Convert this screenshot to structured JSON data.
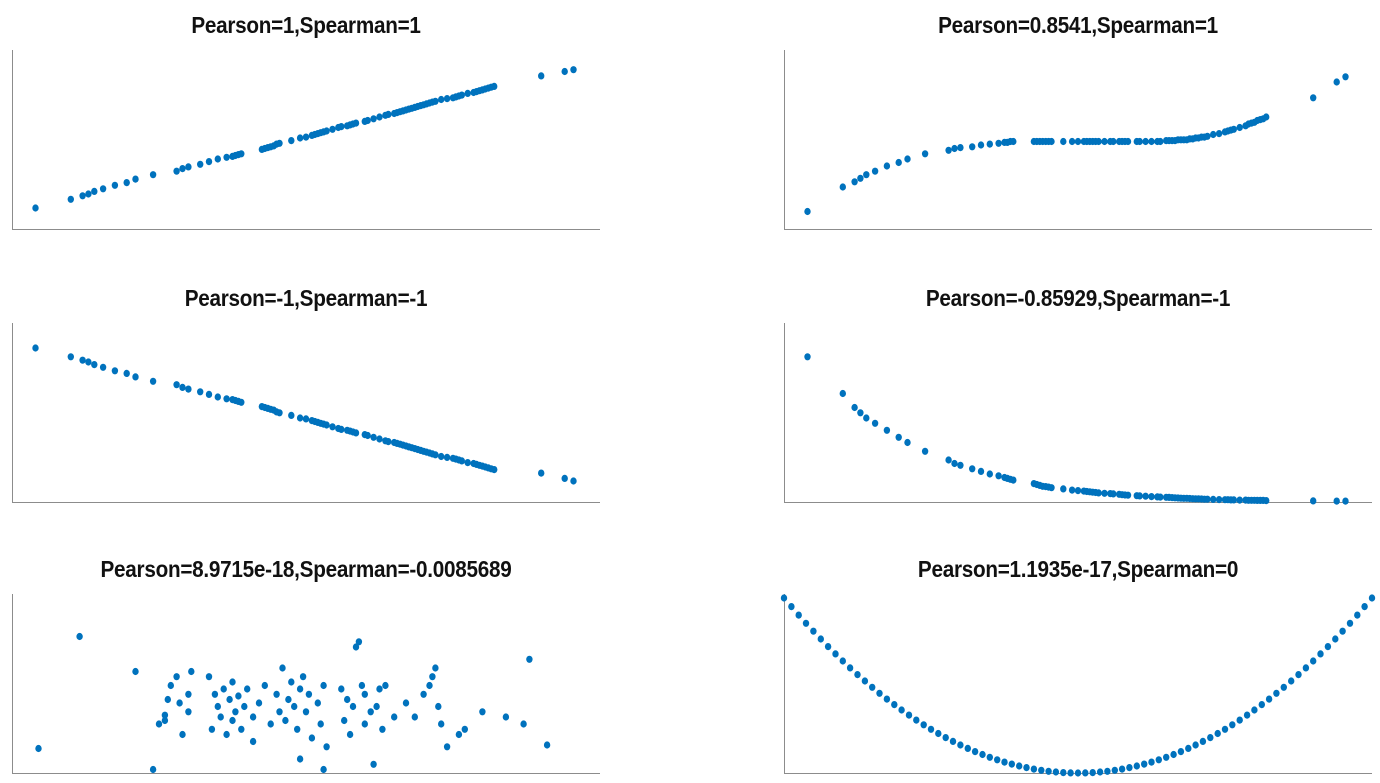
{
  "colors": {
    "marker": "#0072BD",
    "axis": "#8c8c8c"
  },
  "chart_data": [
    {
      "type": "scatter",
      "title": "Pearson=1,Spearman=1",
      "xlim": [
        0,
        1
      ],
      "ylim": [
        0,
        1
      ],
      "grid": false,
      "legend": "none",
      "x": [
        0.04,
        0.1,
        0.12,
        0.13,
        0.14,
        0.155,
        0.175,
        0.195,
        0.21,
        0.24,
        0.28,
        0.29,
        0.3,
        0.32,
        0.335,
        0.35,
        0.365,
        0.375,
        0.38,
        0.385,
        0.39,
        0.425,
        0.43,
        0.435,
        0.44,
        0.445,
        0.45,
        0.455,
        0.475,
        0.49,
        0.5,
        0.51,
        0.515,
        0.52,
        0.525,
        0.53,
        0.535,
        0.545,
        0.555,
        0.56,
        0.57,
        0.575,
        0.58,
        0.585,
        0.6,
        0.605,
        0.615,
        0.625,
        0.635,
        0.64,
        0.65,
        0.655,
        0.66,
        0.665,
        0.67,
        0.675,
        0.68,
        0.685,
        0.69,
        0.695,
        0.7,
        0.705,
        0.71,
        0.715,
        0.72,
        0.73,
        0.74,
        0.75,
        0.755,
        0.76,
        0.765,
        0.775,
        0.785,
        0.79,
        0.795,
        0.8,
        0.805,
        0.81,
        0.815,
        0.82,
        0.9,
        0.94,
        0.955
      ],
      "y": [
        0.12,
        0.17,
        0.19,
        0.2,
        0.215,
        0.23,
        0.25,
        0.265,
        0.285,
        0.31,
        0.33,
        0.345,
        0.355,
        0.37,
        0.385,
        0.4,
        0.41,
        0.415,
        0.42,
        0.425,
        0.43,
        0.455,
        0.46,
        0.465,
        0.47,
        0.475,
        0.485,
        0.49,
        0.505,
        0.52,
        0.525,
        0.535,
        0.54,
        0.545,
        0.55,
        0.555,
        0.56,
        0.57,
        0.58,
        0.585,
        0.59,
        0.595,
        0.6,
        0.605,
        0.615,
        0.62,
        0.63,
        0.64,
        0.65,
        0.655,
        0.66,
        0.665,
        0.67,
        0.675,
        0.68,
        0.685,
        0.69,
        0.695,
        0.7,
        0.705,
        0.71,
        0.715,
        0.72,
        0.725,
        0.73,
        0.74,
        0.745,
        0.75,
        0.755,
        0.76,
        0.765,
        0.775,
        0.78,
        0.785,
        0.79,
        0.795,
        0.8,
        0.805,
        0.81,
        0.815,
        0.875,
        0.9,
        0.91
      ]
    },
    {
      "type": "scatter",
      "title": "Pearson=0.8541,Spearman=1",
      "xlim": [
        0,
        1
      ],
      "ylim": [
        0,
        1
      ],
      "grid": false,
      "legend": "none",
      "x": [
        0.04,
        0.1,
        0.12,
        0.13,
        0.14,
        0.155,
        0.175,
        0.195,
        0.21,
        0.24,
        0.28,
        0.29,
        0.3,
        0.32,
        0.335,
        0.35,
        0.365,
        0.375,
        0.38,
        0.385,
        0.39,
        0.425,
        0.43,
        0.435,
        0.44,
        0.445,
        0.45,
        0.455,
        0.475,
        0.49,
        0.5,
        0.51,
        0.515,
        0.52,
        0.525,
        0.53,
        0.535,
        0.545,
        0.555,
        0.56,
        0.57,
        0.575,
        0.58,
        0.585,
        0.6,
        0.605,
        0.615,
        0.625,
        0.635,
        0.64,
        0.65,
        0.655,
        0.66,
        0.665,
        0.67,
        0.675,
        0.68,
        0.685,
        0.69,
        0.695,
        0.7,
        0.705,
        0.71,
        0.715,
        0.72,
        0.73,
        0.74,
        0.75,
        0.755,
        0.76,
        0.765,
        0.775,
        0.785,
        0.79,
        0.795,
        0.8,
        0.805,
        0.81,
        0.815,
        0.82,
        0.9,
        0.94,
        0.955
      ],
      "y": [
        0.1,
        0.24,
        0.27,
        0.29,
        0.31,
        0.33,
        0.36,
        0.38,
        0.4,
        0.43,
        0.45,
        0.46,
        0.465,
        0.47,
        0.48,
        0.485,
        0.49,
        0.495,
        0.495,
        0.5,
        0.5,
        0.5,
        0.5,
        0.5,
        0.5,
        0.5,
        0.5,
        0.5,
        0.5,
        0.5,
        0.5,
        0.5,
        0.5,
        0.5,
        0.5,
        0.5,
        0.5,
        0.5,
        0.5,
        0.5,
        0.5,
        0.5,
        0.5,
        0.5,
        0.5,
        0.5,
        0.5,
        0.5,
        0.5,
        0.5,
        0.505,
        0.505,
        0.505,
        0.505,
        0.51,
        0.51,
        0.51,
        0.51,
        0.515,
        0.515,
        0.52,
        0.52,
        0.525,
        0.525,
        0.53,
        0.54,
        0.545,
        0.555,
        0.56,
        0.565,
        0.57,
        0.58,
        0.59,
        0.6,
        0.605,
        0.61,
        0.62,
        0.625,
        0.63,
        0.64,
        0.75,
        0.84,
        0.87
      ]
    },
    {
      "type": "scatter",
      "title": "Pearson=-1,Spearman=-1",
      "xlim": [
        0,
        1
      ],
      "ylim": [
        0,
        1
      ],
      "grid": false,
      "legend": "none",
      "x": [
        0.04,
        0.1,
        0.12,
        0.13,
        0.14,
        0.155,
        0.175,
        0.195,
        0.21,
        0.24,
        0.28,
        0.29,
        0.3,
        0.32,
        0.335,
        0.35,
        0.365,
        0.375,
        0.38,
        0.385,
        0.39,
        0.425,
        0.43,
        0.435,
        0.44,
        0.445,
        0.45,
        0.455,
        0.475,
        0.49,
        0.5,
        0.51,
        0.515,
        0.52,
        0.525,
        0.53,
        0.535,
        0.545,
        0.555,
        0.56,
        0.57,
        0.575,
        0.58,
        0.585,
        0.6,
        0.605,
        0.615,
        0.625,
        0.635,
        0.64,
        0.65,
        0.655,
        0.66,
        0.665,
        0.67,
        0.675,
        0.68,
        0.685,
        0.69,
        0.695,
        0.7,
        0.705,
        0.71,
        0.715,
        0.72,
        0.73,
        0.74,
        0.75,
        0.755,
        0.76,
        0.765,
        0.775,
        0.785,
        0.79,
        0.795,
        0.8,
        0.805,
        0.81,
        0.815,
        0.82,
        0.9,
        0.94,
        0.955
      ],
      "y": [
        0.88,
        0.83,
        0.81,
        0.8,
        0.785,
        0.77,
        0.75,
        0.735,
        0.715,
        0.69,
        0.67,
        0.655,
        0.645,
        0.63,
        0.615,
        0.6,
        0.59,
        0.585,
        0.58,
        0.575,
        0.57,
        0.545,
        0.54,
        0.535,
        0.53,
        0.525,
        0.515,
        0.51,
        0.495,
        0.48,
        0.475,
        0.465,
        0.46,
        0.455,
        0.45,
        0.445,
        0.44,
        0.43,
        0.42,
        0.415,
        0.41,
        0.405,
        0.4,
        0.395,
        0.385,
        0.38,
        0.37,
        0.36,
        0.35,
        0.345,
        0.34,
        0.335,
        0.33,
        0.325,
        0.32,
        0.315,
        0.31,
        0.305,
        0.3,
        0.295,
        0.29,
        0.285,
        0.28,
        0.275,
        0.27,
        0.26,
        0.255,
        0.25,
        0.245,
        0.24,
        0.235,
        0.225,
        0.22,
        0.215,
        0.21,
        0.205,
        0.2,
        0.195,
        0.19,
        0.185,
        0.165,
        0.135,
        0.12
      ]
    },
    {
      "type": "scatter",
      "title": "Pearson=-0.85929,Spearman=-1",
      "xlim": [
        0,
        1
      ],
      "ylim": [
        0,
        1
      ],
      "grid": false,
      "legend": "none",
      "x": [
        0.04,
        0.1,
        0.12,
        0.13,
        0.14,
        0.155,
        0.175,
        0.195,
        0.21,
        0.24,
        0.28,
        0.29,
        0.3,
        0.32,
        0.335,
        0.35,
        0.365,
        0.375,
        0.38,
        0.385,
        0.39,
        0.425,
        0.43,
        0.435,
        0.44,
        0.445,
        0.45,
        0.455,
        0.475,
        0.49,
        0.5,
        0.51,
        0.515,
        0.52,
        0.525,
        0.53,
        0.535,
        0.545,
        0.555,
        0.56,
        0.57,
        0.575,
        0.58,
        0.585,
        0.6,
        0.605,
        0.615,
        0.625,
        0.635,
        0.64,
        0.65,
        0.655,
        0.66,
        0.665,
        0.67,
        0.675,
        0.68,
        0.685,
        0.69,
        0.695,
        0.7,
        0.705,
        0.71,
        0.715,
        0.72,
        0.73,
        0.74,
        0.75,
        0.755,
        0.76,
        0.765,
        0.775,
        0.785,
        0.79,
        0.795,
        0.8,
        0.805,
        0.81,
        0.815,
        0.82,
        0.9,
        0.94,
        0.955
      ],
      "y": [
        0.83,
        0.62,
        0.54,
        0.51,
        0.48,
        0.45,
        0.41,
        0.37,
        0.34,
        0.29,
        0.24,
        0.22,
        0.21,
        0.19,
        0.175,
        0.16,
        0.15,
        0.14,
        0.135,
        0.13,
        0.125,
        0.105,
        0.1,
        0.095,
        0.09,
        0.088,
        0.085,
        0.082,
        0.075,
        0.068,
        0.065,
        0.062,
        0.06,
        0.058,
        0.056,
        0.054,
        0.052,
        0.05,
        0.048,
        0.046,
        0.044,
        0.042,
        0.04,
        0.039,
        0.036,
        0.035,
        0.033,
        0.031,
        0.029,
        0.028,
        0.027,
        0.026,
        0.025,
        0.024,
        0.023,
        0.022,
        0.021,
        0.021,
        0.02,
        0.019,
        0.018,
        0.018,
        0.017,
        0.016,
        0.016,
        0.015,
        0.014,
        0.013,
        0.013,
        0.012,
        0.012,
        0.011,
        0.011,
        0.01,
        0.01,
        0.01,
        0.009,
        0.009,
        0.009,
        0.008,
        0.006,
        0.005,
        0.005
      ]
    },
    {
      "type": "scatter",
      "title": "Pearson=8.9715e-18,Spearman=-0.0085689",
      "xlim": [
        0,
        1
      ],
      "ylim": [
        0,
        1
      ],
      "grid": false,
      "legend": "none",
      "x": [
        0.045,
        0.21,
        0.25,
        0.26,
        0.265,
        0.27,
        0.26,
        0.28,
        0.285,
        0.29,
        0.3,
        0.3,
        0.305,
        0.335,
        0.34,
        0.345,
        0.35,
        0.355,
        0.36,
        0.365,
        0.37,
        0.375,
        0.375,
        0.38,
        0.385,
        0.39,
        0.395,
        0.4,
        0.41,
        0.41,
        0.42,
        0.43,
        0.44,
        0.45,
        0.455,
        0.46,
        0.465,
        0.47,
        0.475,
        0.48,
        0.485,
        0.49,
        0.49,
        0.495,
        0.5,
        0.505,
        0.51,
        0.52,
        0.525,
        0.53,
        0.535,
        0.56,
        0.565,
        0.57,
        0.575,
        0.58,
        0.585,
        0.59,
        0.595,
        0.6,
        0.6,
        0.61,
        0.615,
        0.62,
        0.625,
        0.63,
        0.635,
        0.65,
        0.67,
        0.685,
        0.7,
        0.71,
        0.715,
        0.72,
        0.725,
        0.73,
        0.74,
        0.76,
        0.77,
        0.8,
        0.84,
        0.87,
        0.88,
        0.91,
        0.115,
        0.24,
        0.53
      ],
      "y": [
        0.14,
        0.58,
        0.28,
        0.33,
        0.42,
        0.5,
        0.3,
        0.55,
        0.4,
        0.22,
        0.35,
        0.45,
        0.58,
        0.55,
        0.25,
        0.45,
        0.38,
        0.32,
        0.48,
        0.22,
        0.42,
        0.3,
        0.52,
        0.35,
        0.44,
        0.25,
        0.38,
        0.48,
        0.18,
        0.32,
        0.4,
        0.5,
        0.28,
        0.45,
        0.35,
        0.6,
        0.3,
        0.42,
        0.52,
        0.38,
        0.25,
        0.48,
        0.08,
        0.55,
        0.35,
        0.45,
        0.2,
        0.4,
        0.28,
        0.5,
        0.15,
        0.48,
        0.3,
        0.42,
        0.22,
        0.38,
        0.72,
        0.75,
        0.5,
        0.28,
        0.45,
        0.35,
        0.05,
        0.38,
        0.48,
        0.25,
        0.5,
        0.32,
        0.4,
        0.32,
        0.45,
        0.5,
        0.55,
        0.6,
        0.38,
        0.28,
        0.15,
        0.22,
        0.25,
        0.35,
        0.32,
        0.28,
        0.65,
        0.16,
        0.78,
        0.02,
        0.02
      ]
    },
    {
      "type": "scatter",
      "title": "Pearson=1.1935e-17,Spearman=0",
      "xlim": [
        -1,
        1
      ],
      "ylim": [
        0,
        1
      ],
      "grid": false,
      "legend": "none",
      "x": [
        -1,
        -0.975,
        -0.95,
        -0.925,
        -0.9,
        -0.875,
        -0.85,
        -0.825,
        -0.8,
        -0.775,
        -0.75,
        -0.725,
        -0.7,
        -0.675,
        -0.65,
        -0.625,
        -0.6,
        -0.575,
        -0.55,
        -0.525,
        -0.5,
        -0.475,
        -0.45,
        -0.425,
        -0.4,
        -0.375,
        -0.35,
        -0.325,
        -0.3,
        -0.275,
        -0.25,
        -0.225,
        -0.2,
        -0.175,
        -0.15,
        -0.125,
        -0.1,
        -0.075,
        -0.05,
        -0.025,
        0,
        0.025,
        0.05,
        0.075,
        0.1,
        0.125,
        0.15,
        0.175,
        0.2,
        0.225,
        0.25,
        0.275,
        0.3,
        0.325,
        0.35,
        0.375,
        0.4,
        0.425,
        0.45,
        0.475,
        0.5,
        0.525,
        0.55,
        0.575,
        0.6,
        0.625,
        0.65,
        0.675,
        0.7,
        0.725,
        0.75,
        0.775,
        0.8,
        0.825,
        0.85,
        0.875,
        0.9,
        0.925,
        0.95,
        0.975,
        1
      ],
      "y": [
        1,
        0.9506,
        0.9025,
        0.8556,
        0.81,
        0.7656,
        0.7225,
        0.6806,
        0.64,
        0.6006,
        0.5625,
        0.5256,
        0.49,
        0.4556,
        0.4225,
        0.3906,
        0.36,
        0.3306,
        0.3025,
        0.2756,
        0.25,
        0.2256,
        0.2025,
        0.1806,
        0.16,
        0.1406,
        0.1225,
        0.1056,
        0.09,
        0.0756,
        0.0625,
        0.0506,
        0.04,
        0.0306,
        0.0225,
        0.0156,
        0.01,
        0.0056,
        0.0025,
        0.0006,
        0,
        0.0006,
        0.0025,
        0.0056,
        0.01,
        0.0156,
        0.0225,
        0.0306,
        0.04,
        0.0506,
        0.0625,
        0.0756,
        0.09,
        0.1056,
        0.1225,
        0.1406,
        0.16,
        0.1806,
        0.2025,
        0.2256,
        0.25,
        0.2756,
        0.3025,
        0.3306,
        0.36,
        0.3906,
        0.4225,
        0.4556,
        0.49,
        0.5256,
        0.5625,
        0.6006,
        0.64,
        0.6806,
        0.7225,
        0.7656,
        0.81,
        0.8556,
        0.9025,
        0.9506,
        1
      ]
    }
  ]
}
